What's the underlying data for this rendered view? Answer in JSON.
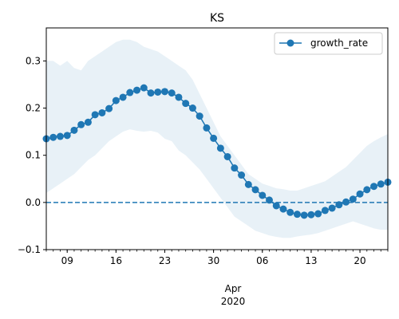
{
  "chart_data": {
    "type": "line",
    "title": "KS",
    "xlabel_month": "Apr",
    "xlabel_year": "2020",
    "ylim": [
      -0.1,
      0.37
    ],
    "xlim": [
      "2020-03-06",
      "2020-04-24"
    ],
    "grid": false,
    "legend": "top-right",
    "series_color": "#1f77b4",
    "band_color": "#1f77b4",
    "baseline": 0.0,
    "y_ticks": [
      {
        "value": -0.1,
        "label": "−0.1"
      },
      {
        "value": 0.0,
        "label": "0.0"
      },
      {
        "value": 0.1,
        "label": "0.1"
      },
      {
        "value": 0.2,
        "label": "0.2"
      },
      {
        "value": 0.3,
        "label": "0.3"
      }
    ],
    "x_major_ticks": [
      {
        "date": "2020-03-09",
        "label": "09"
      },
      {
        "date": "2020-03-16",
        "label": "16"
      },
      {
        "date": "2020-03-23",
        "label": "23"
      },
      {
        "date": "2020-03-30",
        "label": "30"
      },
      {
        "date": "2020-04-06",
        "label": "06"
      },
      {
        "date": "2020-04-13",
        "label": "13"
      },
      {
        "date": "2020-04-20",
        "label": "20"
      }
    ],
    "series": [
      {
        "name": "growth_rate",
        "x": [
          "2020-03-06",
          "2020-03-07",
          "2020-03-08",
          "2020-03-09",
          "2020-03-10",
          "2020-03-11",
          "2020-03-12",
          "2020-03-13",
          "2020-03-14",
          "2020-03-15",
          "2020-03-16",
          "2020-03-17",
          "2020-03-18",
          "2020-03-19",
          "2020-03-20",
          "2020-03-21",
          "2020-03-22",
          "2020-03-23",
          "2020-03-24",
          "2020-03-25",
          "2020-03-26",
          "2020-03-27",
          "2020-03-28",
          "2020-03-29",
          "2020-03-30",
          "2020-03-31",
          "2020-04-01",
          "2020-04-02",
          "2020-04-03",
          "2020-04-04",
          "2020-04-05",
          "2020-04-06",
          "2020-04-07",
          "2020-04-08",
          "2020-04-09",
          "2020-04-10",
          "2020-04-11",
          "2020-04-12",
          "2020-04-13",
          "2020-04-14",
          "2020-04-15",
          "2020-04-16",
          "2020-04-17",
          "2020-04-18",
          "2020-04-19",
          "2020-04-20",
          "2020-04-21",
          "2020-04-22",
          "2020-04-23",
          "2020-04-24"
        ],
        "values": [
          0.135,
          0.138,
          0.14,
          0.142,
          0.153,
          0.165,
          0.17,
          0.186,
          0.19,
          0.199,
          0.216,
          0.223,
          0.233,
          0.238,
          0.243,
          0.232,
          0.234,
          0.235,
          0.232,
          0.223,
          0.21,
          0.2,
          0.183,
          0.158,
          0.136,
          0.115,
          0.097,
          0.073,
          0.058,
          0.038,
          0.027,
          0.015,
          0.005,
          -0.007,
          -0.014,
          -0.021,
          -0.025,
          -0.027,
          -0.026,
          -0.024,
          -0.017,
          -0.012,
          -0.005,
          0.001,
          0.007,
          0.018,
          0.027,
          0.034,
          0.039,
          0.043
        ],
        "lower": [
          0.02,
          0.03,
          0.04,
          0.05,
          0.06,
          0.075,
          0.09,
          0.1,
          0.115,
          0.13,
          0.14,
          0.15,
          0.155,
          0.152,
          0.15,
          0.152,
          0.148,
          0.135,
          0.13,
          0.11,
          0.1,
          0.085,
          0.07,
          0.05,
          0.03,
          0.01,
          -0.01,
          -0.03,
          -0.04,
          -0.05,
          -0.06,
          -0.065,
          -0.07,
          -0.073,
          -0.075,
          -0.075,
          -0.072,
          -0.07,
          -0.068,
          -0.065,
          -0.06,
          -0.055,
          -0.05,
          -0.045,
          -0.04,
          -0.045,
          -0.05,
          -0.055,
          -0.058,
          -0.058
        ],
        "upper": [
          0.3,
          0.3,
          0.29,
          0.3,
          0.285,
          0.28,
          0.3,
          0.31,
          0.32,
          0.33,
          0.34,
          0.345,
          0.345,
          0.34,
          0.33,
          0.325,
          0.32,
          0.31,
          0.3,
          0.29,
          0.28,
          0.26,
          0.23,
          0.2,
          0.17,
          0.14,
          0.12,
          0.1,
          0.08,
          0.06,
          0.05,
          0.04,
          0.035,
          0.03,
          0.028,
          0.025,
          0.025,
          0.03,
          0.035,
          0.04,
          0.045,
          0.055,
          0.065,
          0.075,
          0.09,
          0.105,
          0.12,
          0.13,
          0.138,
          0.145
        ]
      }
    ]
  }
}
